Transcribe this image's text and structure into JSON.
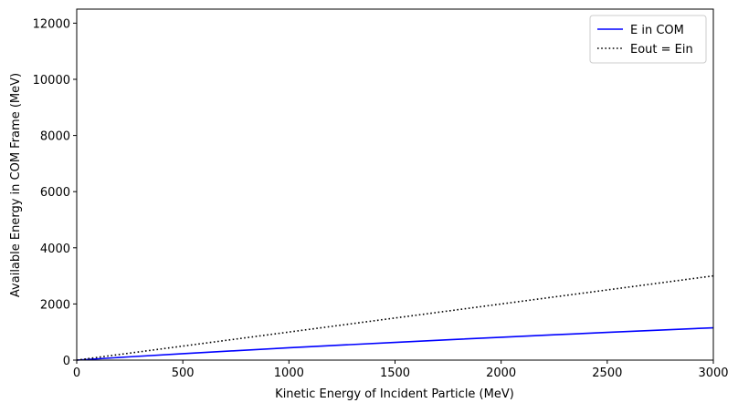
{
  "chart_data": {
    "type": "line",
    "xlabel": "Kinetic Energy of Incident Particle (MeV)",
    "ylabel": "Available Energy in COM Frame (MeV)",
    "xlim": [
      0,
      3000
    ],
    "ylim": [
      0,
      12500
    ],
    "x_ticks": [
      0,
      500,
      1000,
      1500,
      2000,
      2500,
      3000
    ],
    "y_ticks": [
      0,
      2000,
      4000,
      6000,
      8000,
      10000,
      12000
    ],
    "x_tick_labels": [
      "0",
      "500",
      "1000",
      "1500",
      "2000",
      "2500",
      "3000"
    ],
    "y_tick_labels": [
      "0",
      "2000",
      "4000",
      "6000",
      "8000",
      "10000",
      "12000"
    ],
    "grid": false,
    "legend_position": "top-right",
    "series": [
      {
        "name": "E in COM",
        "color": "#0000ff",
        "style": "solid",
        "x": [
          0,
          250,
          500,
          750,
          1000,
          1250,
          1500,
          1750,
          2000,
          2250,
          2500,
          2750,
          3000
        ],
        "y": [
          0,
          118,
          229,
          336,
          439,
          537,
          632,
          725,
          815,
          902,
          987,
          1070,
          1152
        ]
      },
      {
        "name": "Eout = Ein",
        "color": "#000000",
        "style": "dotted",
        "x": [
          0,
          3000
        ],
        "y": [
          0,
          3000
        ]
      }
    ]
  }
}
